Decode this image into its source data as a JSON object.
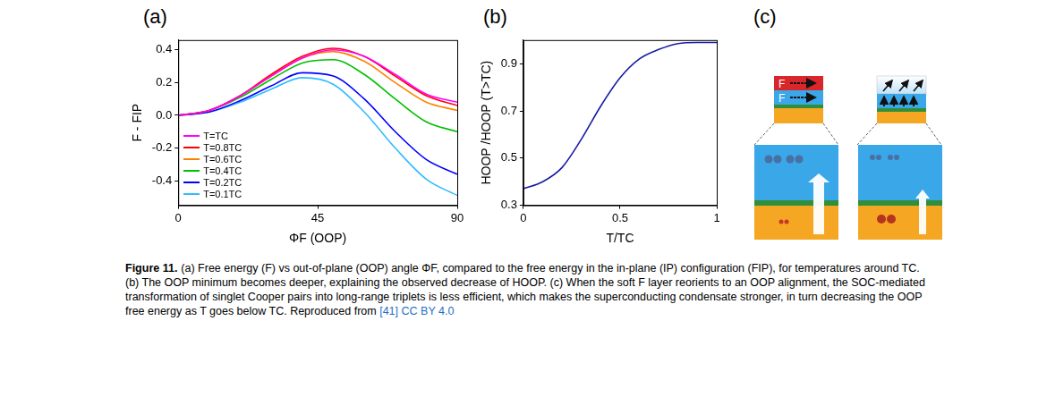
{
  "panel_labels": [
    "(a)",
    "(b)",
    "(c)"
  ],
  "chart_data": [
    {
      "type": "line",
      "x_label": "ΦF (OOP)",
      "y_label": "F - FIP",
      "x": [
        0,
        10,
        20,
        30,
        40,
        50,
        60,
        70,
        80,
        90
      ],
      "series": [
        {
          "name": "T=TC",
          "color": "#ff00ff",
          "values": [
            0,
            0.03,
            0.12,
            0.24,
            0.35,
            0.4,
            0.36,
            0.25,
            0.13,
            0.08
          ]
        },
        {
          "name": "T=0.8TC",
          "color": "#ff0000",
          "values": [
            0,
            0.03,
            0.12,
            0.25,
            0.36,
            0.41,
            0.36,
            0.24,
            0.12,
            0.06
          ]
        },
        {
          "name": "T=0.6TC",
          "color": "#ff8000",
          "values": [
            0,
            0.03,
            0.12,
            0.24,
            0.35,
            0.39,
            0.33,
            0.2,
            0.08,
            0.03
          ]
        },
        {
          "name": "T=0.4TC",
          "color": "#00c000",
          "values": [
            0,
            0.03,
            0.11,
            0.22,
            0.32,
            0.34,
            0.25,
            0.1,
            -0.04,
            -0.1
          ]
        },
        {
          "name": "T=0.2TC",
          "color": "#0000ff",
          "values": [
            0,
            0.02,
            0.09,
            0.18,
            0.26,
            0.24,
            0.1,
            -0.1,
            -0.27,
            -0.36
          ]
        },
        {
          "name": "T=0.1TC",
          "color": "#33bbff",
          "values": [
            0,
            0.02,
            0.08,
            0.16,
            0.23,
            0.19,
            0.02,
            -0.2,
            -0.39,
            -0.49
          ]
        }
      ],
      "xlim": [
        0,
        90
      ],
      "xticks": [
        0,
        45,
        90
      ],
      "ylim": [
        -0.55,
        0.46
      ],
      "yticks": [
        -0.4,
        -0.2,
        {
          "value": 0,
          "label": "0.0"
        },
        0.2,
        0.4
      ],
      "grid": false,
      "legend": "lower left"
    },
    {
      "type": "line",
      "x_label": "T/TC",
      "y_label": "HOOP /HOOP (T>TC)",
      "x": [
        0,
        0.1,
        0.2,
        0.3,
        0.4,
        0.5,
        0.6,
        0.7,
        0.8,
        0.9,
        1
      ],
      "series": [
        {
          "name": "HOOP /HOOP (T>TC)",
          "color": "#1a1aa6",
          "values": [
            0.37,
            0.4,
            0.46,
            0.58,
            0.72,
            0.84,
            0.92,
            0.96,
            0.985,
            0.99,
            0.99
          ]
        }
      ],
      "xlim": [
        0,
        1
      ],
      "xticks": [
        0,
        0.5,
        1
      ],
      "ylim": [
        0.3,
        1.0
      ],
      "yticks": [
        0.3,
        0.5,
        0.7,
        0.9
      ],
      "grid": false
    }
  ],
  "diagram": {
    "left_stack": {
      "top_layer": "F",
      "soft_layer": "F"
    }
  },
  "caption": {
    "label": "Figure 11.",
    "text": "(a) Free energy (F) vs out-of-plane (OOP) angle ΦF, compared to the free energy in the in-plane (IP) configuration (FIP), for temperatures around TC. (b) The OOP minimum becomes deeper, explaining the observed decrease of HOOP. (c) When the soft F layer reorients to an OOP alignment, the SOC-mediated transformation of singlet Cooper pairs into long-range triplets is less efficient, which makes the superconducting condensate stronger, in turn decreasing the OOP free energy as T goes below TC. Reproduced from",
    "source": "[41]",
    "license": "CC BY 4.0"
  }
}
